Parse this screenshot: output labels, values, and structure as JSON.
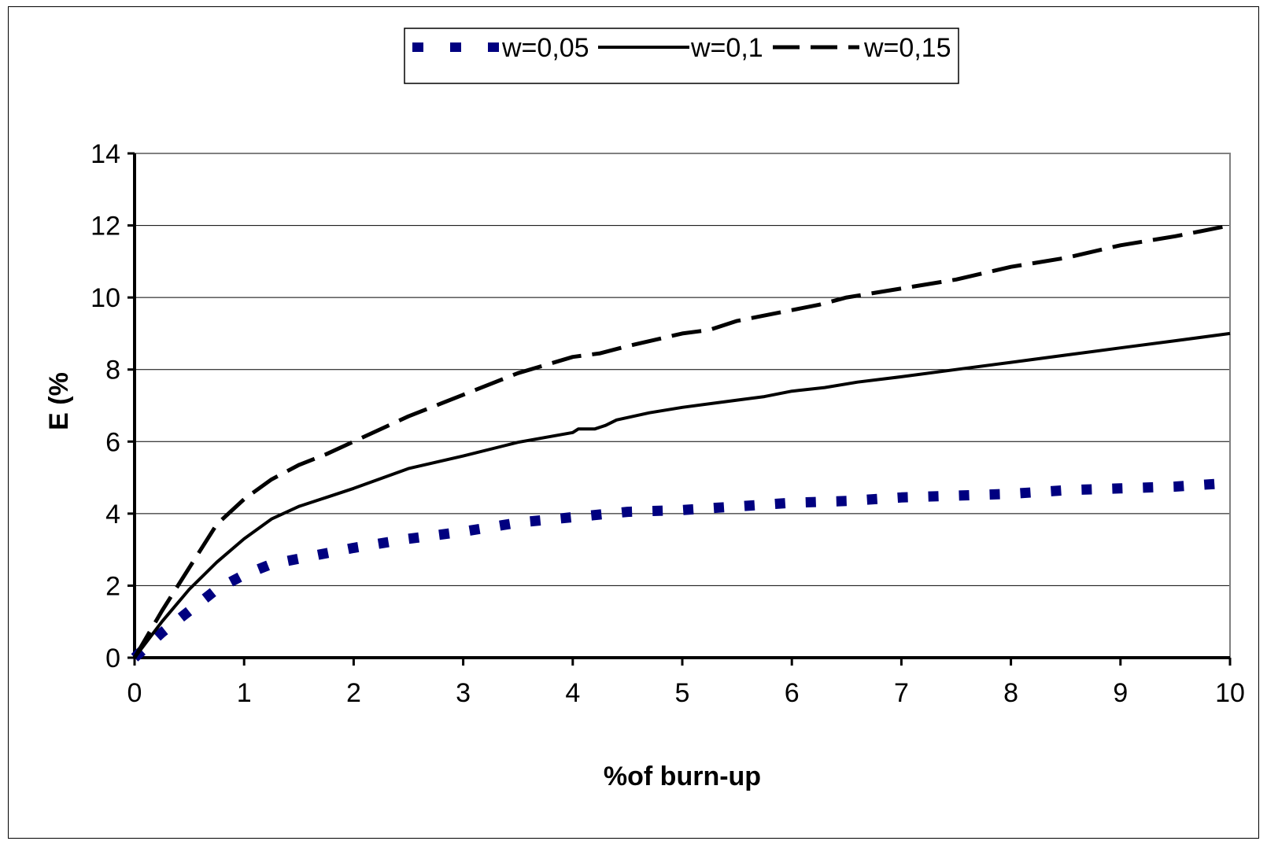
{
  "chart_data": {
    "type": "line",
    "xlabel": "%of burn-up",
    "ylabel": "E (%",
    "xlim": [
      0,
      10
    ],
    "ylim": [
      0,
      14
    ],
    "x_ticks": [
      "0",
      "1",
      "2",
      "3",
      "4",
      "5",
      "6",
      "7",
      "8",
      "9",
      "10"
    ],
    "y_ticks": [
      "0",
      "2",
      "4",
      "6",
      "8",
      "10",
      "12",
      "14"
    ],
    "grid": "horizontal",
    "legend_position": "top-center",
    "series": [
      {
        "name": "w=0,05",
        "color": "#000080",
        "style": "dotted",
        "x": [
          0,
          0.25,
          0.5,
          0.75,
          1,
          1.25,
          1.5,
          1.75,
          2,
          2.5,
          3,
          3.5,
          4,
          4.5,
          5,
          5.5,
          6,
          6.5,
          7,
          7.5,
          8,
          8.5,
          9,
          9.5,
          10
        ],
        "y": [
          0,
          0.7,
          1.3,
          1.9,
          2.3,
          2.6,
          2.75,
          2.9,
          3.05,
          3.3,
          3.5,
          3.75,
          3.9,
          4.05,
          4.1,
          4.2,
          4.3,
          4.35,
          4.45,
          4.5,
          4.55,
          4.65,
          4.7,
          4.75,
          4.85
        ]
      },
      {
        "name": "w=0,1",
        "color": "#000000",
        "style": "solid",
        "x": [
          0,
          0.25,
          0.5,
          0.75,
          1,
          1.25,
          1.5,
          1.75,
          2,
          2.5,
          3,
          3.5,
          4,
          4.05,
          4.2,
          4.3,
          4.4,
          4.7,
          5,
          5.5,
          5.75,
          6,
          6.3,
          6.6,
          7,
          7.5,
          8,
          8.5,
          9,
          9.5,
          10
        ],
        "y": [
          0,
          1,
          1.9,
          2.65,
          3.3,
          3.85,
          4.2,
          4.45,
          4.7,
          5.25,
          5.6,
          5.98,
          6.25,
          6.35,
          6.35,
          6.45,
          6.6,
          6.8,
          6.95,
          7.15,
          7.25,
          7.4,
          7.5,
          7.65,
          7.8,
          8.0,
          8.2,
          8.4,
          8.6,
          8.8,
          9.0
        ]
      },
      {
        "name": "w=0,15",
        "color": "#000000",
        "style": "dashed",
        "x": [
          0,
          0.25,
          0.5,
          0.75,
          1,
          1.25,
          1.5,
          1.75,
          2,
          2.5,
          3,
          3.5,
          4,
          4.25,
          4.5,
          5,
          5.25,
          5.5,
          6,
          6.25,
          6.5,
          7,
          7.5,
          8,
          8.5,
          9,
          9.5,
          10
        ],
        "y": [
          0,
          1.3,
          2.5,
          3.7,
          4.4,
          4.95,
          5.35,
          5.65,
          6.0,
          6.7,
          7.3,
          7.9,
          8.35,
          8.45,
          8.65,
          9.0,
          9.1,
          9.35,
          9.65,
          9.8,
          10.0,
          10.25,
          10.5,
          10.85,
          11.1,
          11.45,
          11.7,
          12.0
        ]
      }
    ]
  }
}
